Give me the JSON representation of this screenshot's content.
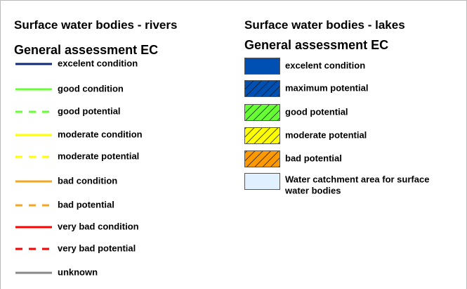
{
  "rivers": {
    "title": "Surface water bodies - rivers",
    "subtitle": "General assessment EC",
    "items": [
      {
        "label": "excelent condition",
        "color": "#0d2a7a",
        "style": "solid"
      },
      {
        "label": "good condition",
        "color": "#66ff33",
        "style": "solid"
      },
      {
        "label": "good potential",
        "color": "#66ff33",
        "style": "dashed"
      },
      {
        "label": "moderate condition",
        "color": "#ffff00",
        "style": "solid"
      },
      {
        "label": "moderate potential",
        "color": "#ffff00",
        "style": "dashed"
      },
      {
        "label": "bad condition",
        "color": "#f5a623",
        "style": "solid"
      },
      {
        "label": "bad potential",
        "color": "#f5a623",
        "style": "dashed"
      },
      {
        "label": "very bad condition",
        "color": "#ff0000",
        "style": "solid"
      },
      {
        "label": "very bad potential",
        "color": "#ff0000",
        "style": "dashed"
      },
      {
        "label": "unknown",
        "color": "#888888",
        "style": "solid"
      }
    ]
  },
  "lakes": {
    "title": "Surface water bodies - lakes",
    "subtitle": "General assessment EC",
    "items": [
      {
        "label": "excelent condition",
        "color": "#0050b4",
        "style": "solid"
      },
      {
        "label": "maximum potential",
        "color": "#0050b4",
        "style": "hatched"
      },
      {
        "label": "good potential",
        "color": "#66ff33",
        "style": "hatched"
      },
      {
        "label": "moderate potential",
        "color": "#ffff00",
        "style": "hatched"
      },
      {
        "label": "bad potential",
        "color": "#ff9900",
        "style": "hatched"
      },
      {
        "label": [
          "Water catchment area for surface",
          "water bodies"
        ],
        "color": "#e0f0ff",
        "style": "solid"
      }
    ]
  }
}
